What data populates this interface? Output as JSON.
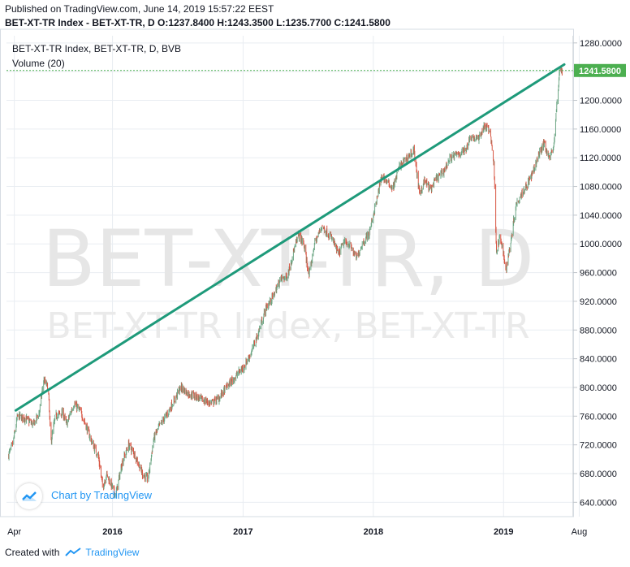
{
  "header": {
    "published": "Published on TradingView.com, June 14, 2019 15:57:22 EEST",
    "ohlc_line": "BET-XT-TR Index - BET-XT-TR, D  O:1237.8400 H:1243.3500 L:1235.7700 C:1241.5800"
  },
  "legend": {
    "series_title": "BET-XT-TR Index, BET-XT-TR, D, BVB",
    "volume_label": "Volume (20)"
  },
  "watermark": {
    "big": "BET-XT-TR, D",
    "sub": "BET-XT-TR Index, BET-XT-TR"
  },
  "branding": {
    "chart_by": "Chart by TradingView"
  },
  "footer": {
    "created_with": "Created with",
    "brand": "TradingView"
  },
  "colors": {
    "up": "#6ba583",
    "down": "#d75442",
    "trendline": "#1e9a7a",
    "last_price": "#4caf50",
    "grid": "#e9edf2",
    "axis": "#bfc4ca",
    "text": "#131722",
    "brand": "#2196f3"
  },
  "chart_data": {
    "type": "candlestick",
    "title": "BET-XT-TR Index, BET-XT-TR, D, BVB",
    "y_ticks": [
      640,
      680,
      720,
      760,
      800,
      840,
      880,
      920,
      960,
      1000,
      1040,
      1080,
      1120,
      1160,
      1200,
      1240,
      1280
    ],
    "y_tick_labels": [
      "640.0000",
      "680.0000",
      "720.0000",
      "760.0000",
      "800.0000",
      "840.0000",
      "880.0000",
      "920.0000",
      "960.0000",
      "1000.0000",
      "1040.0000",
      "1080.0000",
      "1120.0000",
      "1160.0000",
      "1200.0000",
      "1240.0000",
      "1280.0000"
    ],
    "ylim": [
      620,
      1290
    ],
    "x_ticks": [
      "2015-04-01",
      "2016-01-01",
      "2017-01-01",
      "2018-01-01",
      "2019-01-01",
      "2019-08-01"
    ],
    "x_tick_labels": [
      "Apr",
      "2016",
      "2017",
      "2018",
      "2019",
      "Aug"
    ],
    "xlim": [
      "2015-03-10",
      "2019-07-15"
    ],
    "last_price": 1241.58,
    "last_price_label": "1241.5800",
    "trendline": {
      "start": [
        "2015-04-05",
        768
      ],
      "end": [
        "2019-06-20",
        1250
      ]
    },
    "series": [
      {
        "x": "2015-03-15",
        "close": 705
      },
      {
        "x": "2015-03-28",
        "close": 722
      },
      {
        "x": "2015-04-10",
        "close": 760
      },
      {
        "x": "2015-05-01",
        "close": 757
      },
      {
        "x": "2015-05-25",
        "close": 748
      },
      {
        "x": "2015-06-10",
        "close": 765
      },
      {
        "x": "2015-06-22",
        "close": 810
      },
      {
        "x": "2015-07-05",
        "close": 800
      },
      {
        "x": "2015-07-12",
        "close": 722
      },
      {
        "x": "2015-07-25",
        "close": 760
      },
      {
        "x": "2015-08-15",
        "close": 765
      },
      {
        "x": "2015-08-25",
        "close": 748
      },
      {
        "x": "2015-09-15",
        "close": 778
      },
      {
        "x": "2015-10-05",
        "close": 765
      },
      {
        "x": "2015-10-20",
        "close": 745
      },
      {
        "x": "2015-11-05",
        "close": 722
      },
      {
        "x": "2015-11-22",
        "close": 705
      },
      {
        "x": "2015-12-05",
        "close": 660
      },
      {
        "x": "2015-12-15",
        "close": 680
      },
      {
        "x": "2016-01-10",
        "close": 650
      },
      {
        "x": "2016-01-28",
        "close": 695
      },
      {
        "x": "2016-02-15",
        "close": 720
      },
      {
        "x": "2016-03-05",
        "close": 705
      },
      {
        "x": "2016-03-25",
        "close": 680
      },
      {
        "x": "2016-04-10",
        "close": 672
      },
      {
        "x": "2016-04-25",
        "close": 728
      },
      {
        "x": "2016-05-10",
        "close": 745
      },
      {
        "x": "2016-06-01",
        "close": 762
      },
      {
        "x": "2016-06-20",
        "close": 780
      },
      {
        "x": "2016-07-10",
        "close": 800
      },
      {
        "x": "2016-07-30",
        "close": 792
      },
      {
        "x": "2016-08-20",
        "close": 788
      },
      {
        "x": "2016-09-10",
        "close": 782
      },
      {
        "x": "2016-10-05",
        "close": 778
      },
      {
        "x": "2016-10-25",
        "close": 785
      },
      {
        "x": "2016-11-15",
        "close": 800
      },
      {
        "x": "2016-12-10",
        "close": 815
      },
      {
        "x": "2017-01-05",
        "close": 830
      },
      {
        "x": "2017-01-25",
        "close": 850
      },
      {
        "x": "2017-02-15",
        "close": 880
      },
      {
        "x": "2017-03-05",
        "close": 910
      },
      {
        "x": "2017-03-25",
        "close": 925
      },
      {
        "x": "2017-04-15",
        "close": 950
      },
      {
        "x": "2017-05-05",
        "close": 955
      },
      {
        "x": "2017-05-20",
        "close": 985
      },
      {
        "x": "2017-06-05",
        "close": 1012
      },
      {
        "x": "2017-06-20",
        "close": 1000
      },
      {
        "x": "2017-07-05",
        "close": 955
      },
      {
        "x": "2017-07-20",
        "close": 1000
      },
      {
        "x": "2017-08-10",
        "close": 1025
      },
      {
        "x": "2017-08-25",
        "close": 1015
      },
      {
        "x": "2017-09-10",
        "close": 1005
      },
      {
        "x": "2017-09-25",
        "close": 985
      },
      {
        "x": "2017-10-10",
        "close": 1002
      },
      {
        "x": "2017-10-25",
        "close": 1000
      },
      {
        "x": "2017-11-15",
        "close": 980
      },
      {
        "x": "2017-12-01",
        "close": 1000
      },
      {
        "x": "2017-12-20",
        "close": 1015
      },
      {
        "x": "2018-01-10",
        "close": 1060
      },
      {
        "x": "2018-01-25",
        "close": 1095
      },
      {
        "x": "2018-02-10",
        "close": 1085
      },
      {
        "x": "2018-02-25",
        "close": 1078
      },
      {
        "x": "2018-03-15",
        "close": 1108
      },
      {
        "x": "2018-04-05",
        "close": 1120
      },
      {
        "x": "2018-04-25",
        "close": 1130
      },
      {
        "x": "2018-05-10",
        "close": 1070
      },
      {
        "x": "2018-05-25",
        "close": 1088
      },
      {
        "x": "2018-06-10",
        "close": 1075
      },
      {
        "x": "2018-06-25",
        "close": 1090
      },
      {
        "x": "2018-07-15",
        "close": 1100
      },
      {
        "x": "2018-08-05",
        "close": 1120
      },
      {
        "x": "2018-08-25",
        "close": 1125
      },
      {
        "x": "2018-09-15",
        "close": 1130
      },
      {
        "x": "2018-10-01",
        "close": 1150
      },
      {
        "x": "2018-10-20",
        "close": 1145
      },
      {
        "x": "2018-11-10",
        "close": 1165
      },
      {
        "x": "2018-11-25",
        "close": 1155
      },
      {
        "x": "2018-12-05",
        "close": 1110
      },
      {
        "x": "2018-12-12",
        "close": 990
      },
      {
        "x": "2018-12-22",
        "close": 1010
      },
      {
        "x": "2019-01-08",
        "close": 965
      },
      {
        "x": "2019-01-20",
        "close": 1000
      },
      {
        "x": "2019-02-05",
        "close": 1055
      },
      {
        "x": "2019-02-20",
        "close": 1070
      },
      {
        "x": "2019-03-10",
        "close": 1085
      },
      {
        "x": "2019-03-25",
        "close": 1100
      },
      {
        "x": "2019-04-10",
        "close": 1125
      },
      {
        "x": "2019-04-25",
        "close": 1140
      },
      {
        "x": "2019-05-10",
        "close": 1118
      },
      {
        "x": "2019-05-22",
        "close": 1140
      },
      {
        "x": "2019-06-01",
        "close": 1205
      },
      {
        "x": "2019-06-08",
        "close": 1248
      },
      {
        "x": "2019-06-14",
        "close": 1241.58
      }
    ]
  }
}
